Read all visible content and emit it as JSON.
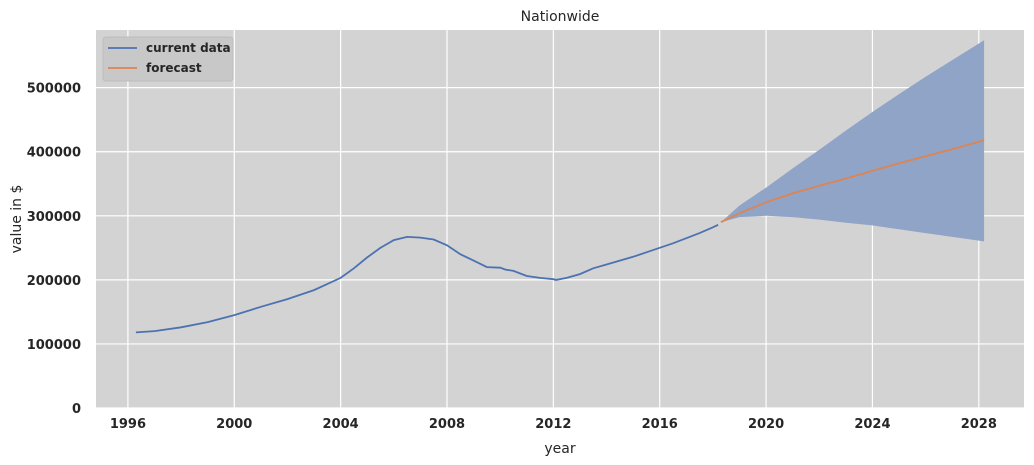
{
  "chart_data": {
    "type": "line",
    "title": "Nationwide",
    "xlabel": "year",
    "ylabel": "value in $",
    "xlim": [
      1994.8,
      2029.7
    ],
    "ylim": [
      0,
      590000
    ],
    "x_ticks": [
      "1996",
      "2000",
      "2004",
      "2008",
      "2012",
      "2016",
      "2020",
      "2024",
      "2028"
    ],
    "y_ticks": [
      "0",
      "100000",
      "200000",
      "300000",
      "400000",
      "500000"
    ],
    "grid": true,
    "legend_position": "top-left",
    "colors": {
      "plot_background": "#d3d3d3",
      "grid": "#ffffff",
      "current_data": "#4c72b0",
      "forecast": "#dd8452",
      "confidence_band": "#8fa4c6"
    },
    "series": [
      {
        "name": "current data",
        "x": [
          1996.3,
          1997.0,
          1998.0,
          1999.0,
          2000.0,
          2001.0,
          2002.0,
          2003.0,
          2004.0,
          2004.5,
          2005.0,
          2005.5,
          2006.0,
          2006.5,
          2007.0,
          2007.5,
          2008.0,
          2008.5,
          2009.0,
          2009.5,
          2010.0,
          2010.2,
          2010.5,
          2011.0,
          2011.5,
          2012.0,
          2012.1,
          2012.5,
          2013.0,
          2013.5,
          2014.0,
          2014.5,
          2015.0,
          2015.5,
          2016.0,
          2016.5,
          2017.0,
          2017.5,
          2018.0,
          2018.2
        ],
        "y": [
          118000,
          120000,
          126000,
          134000,
          145000,
          158000,
          170000,
          184000,
          203000,
          218000,
          235000,
          250000,
          262000,
          267000,
          266000,
          263000,
          254000,
          240000,
          230000,
          220000,
          219000,
          216000,
          214000,
          206000,
          203000,
          201000,
          200000,
          203000,
          209000,
          218000,
          224000,
          230000,
          236000,
          243000,
          250000,
          257000,
          265000,
          273000,
          282000,
          286000
        ]
      },
      {
        "name": "forecast",
        "x": [
          2018.3,
          2019.0,
          2020.0,
          2021.0,
          2022.0,
          2023.0,
          2024.0,
          2025.0,
          2026.0,
          2027.0,
          2028.2
        ],
        "y": [
          290000,
          304000,
          321000,
          335000,
          347000,
          358000,
          370000,
          382000,
          393000,
          404000,
          418000
        ]
      }
    ],
    "confidence_interval": {
      "x": [
        2018.3,
        2019.0,
        2020.0,
        2021.0,
        2022.0,
        2023.0,
        2024.0,
        2025.0,
        2026.0,
        2027.0,
        2028.2
      ],
      "upper": [
        290000,
        316000,
        344000,
        374000,
        403000,
        433000,
        462000,
        490000,
        517000,
        543000,
        574000
      ],
      "lower": [
        290000,
        298000,
        300000,
        298000,
        294000,
        289000,
        285000,
        279000,
        273000,
        267000,
        260000
      ]
    }
  }
}
